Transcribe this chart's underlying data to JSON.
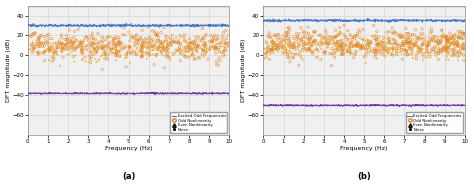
{
  "fig_width": 4.74,
  "fig_height": 1.91,
  "dpi": 100,
  "subplot_a": {
    "xlim": [
      0,
      10
    ],
    "ylim": [
      -80,
      50
    ],
    "yticks": [
      -60,
      -40,
      -20,
      0,
      20,
      40
    ],
    "xticks": [
      0,
      1,
      2,
      3,
      4,
      5,
      6,
      7,
      8,
      9,
      10
    ],
    "xlabel": "Frequency (Hz)",
    "ylabel": "DFT magnitude (dB)",
    "label": "(a)",
    "excited_line_y": 30,
    "noise_line_y": -38,
    "excited_color": "#4472c4",
    "noise_color": "#7030a0",
    "odd_color": "#e6821e",
    "even_color": "#e6a817",
    "noise_dot_color": "#ffff80",
    "odd_n": 500,
    "even_n": 200,
    "odd_mean": 10,
    "odd_std": 7,
    "even_mean": 6,
    "even_std": 6
  },
  "subplot_b": {
    "xlim": [
      0,
      10
    ],
    "ylim": [
      -80,
      50
    ],
    "yticks": [
      -60,
      -40,
      -20,
      0,
      20,
      40
    ],
    "xticks": [
      0,
      1,
      2,
      3,
      4,
      5,
      6,
      7,
      8,
      9,
      10
    ],
    "xlabel": "Frequency (Hz)",
    "ylabel": "DFT magnitude (dB)",
    "label": "(b)",
    "excited_line_y": 35,
    "noise_line_y": -50,
    "excited_color": "#4472c4",
    "noise_color": "#7030a0",
    "odd_color": "#e6821e",
    "even_color": "#e6a817",
    "noise_dot_color": "#ffff80",
    "odd_n": 600,
    "even_n": 250,
    "odd_mean": 12,
    "odd_std": 7,
    "even_mean": 9,
    "even_std": 6
  },
  "legend_labels": [
    "Excited Odd Frequencies",
    "Odd Nonlinearity",
    "Even Nonlinearity",
    "Noise"
  ],
  "top_dotted_color": "#aaaaaa",
  "grid_color": "#d0d0d0",
  "bg_color": "#f0f0f0"
}
